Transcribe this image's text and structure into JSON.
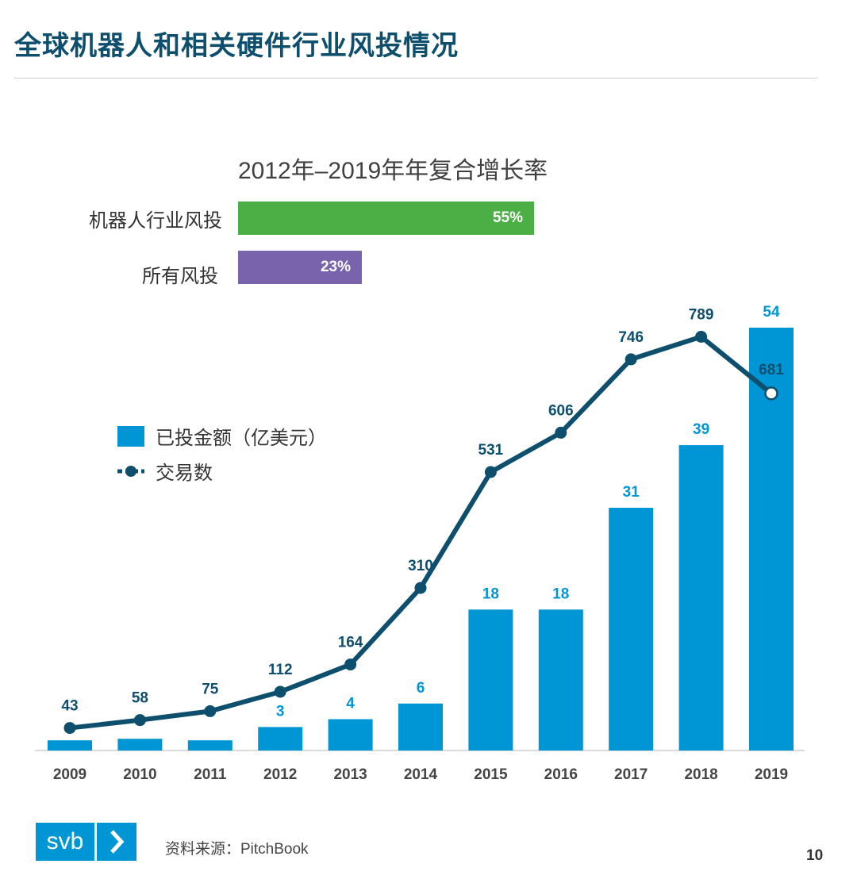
{
  "title": "全球机器人和相关硬件行业风投情况",
  "cagr": {
    "title": "2012年–2019年年复合增长率",
    "items": [
      {
        "label": "机器人行业风投",
        "value_text": "55%",
        "value": 55,
        "color": "#4caf45"
      },
      {
        "label": "所有风投",
        "value_text": "23%",
        "value": 23,
        "color": "#7a63ad"
      }
    ]
  },
  "legend": {
    "bar_label": "已投金额（亿美元）",
    "line_label": "交易数"
  },
  "chart_data": {
    "type": "bar",
    "categories": [
      "2009",
      "2010",
      "2011",
      "2012",
      "2013",
      "2014",
      "2015",
      "2016",
      "2017",
      "2018",
      "2019"
    ],
    "series": [
      {
        "name": "已投金额（亿美元）",
        "kind": "bar",
        "color": "#0096d6",
        "values": [
          1.3,
          1.5,
          1.3,
          3,
          4,
          6,
          18,
          18,
          31,
          39,
          54
        ],
        "labels": [
          "",
          "",
          "",
          "3",
          "4",
          "6",
          "18",
          "18",
          "31",
          "39",
          "54"
        ]
      },
      {
        "name": "交易数",
        "kind": "line",
        "color": "#0e4f6e",
        "values": [
          43,
          58,
          75,
          112,
          164,
          310,
          531,
          606,
          746,
          789,
          681
        ],
        "labels": [
          "43",
          "58",
          "75",
          "112",
          "164",
          "310",
          "531",
          "606",
          "746",
          "789",
          "681"
        ]
      }
    ],
    "title": "",
    "xlabel": "",
    "ylabel": ""
  },
  "footer": {
    "logo_text": "svb",
    "source": "资料来源：PitchBook",
    "page_number": "10"
  }
}
